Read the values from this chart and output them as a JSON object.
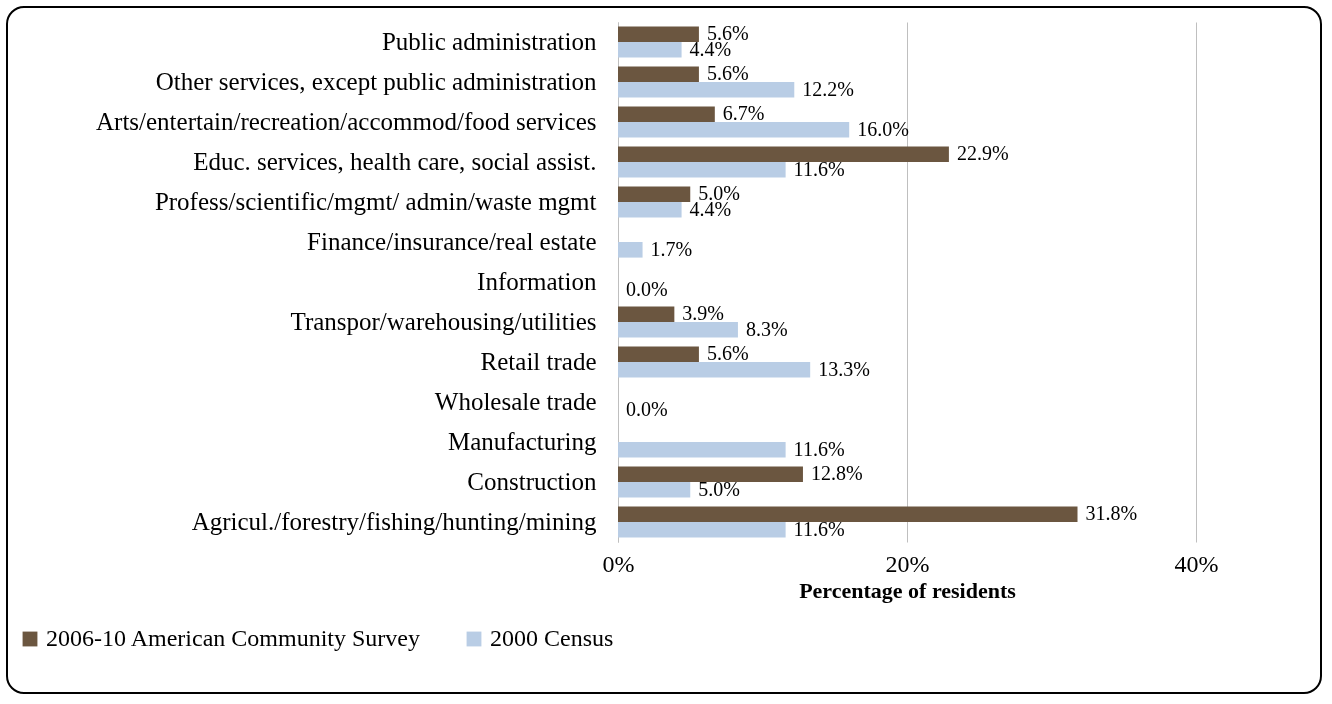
{
  "chart_data": {
    "type": "bar",
    "orientation": "horizontal",
    "categories": [
      "Public administration",
      "Other services, except public administration",
      "Arts/entertain/recreation/accommod/food services",
      "Educ. services, health care, social assist.",
      "Profess/scientific/mgmt/ admin/waste mgmt",
      "Finance/insurance/real estate",
      "Information",
      "Transpor/warehousing/utilities",
      "Retail trade",
      "Wholesale trade",
      "Manufacturing",
      "Construction",
      "Agricul./forestry/fishing/hunting/mining"
    ],
    "series": [
      {
        "name": "2006-10 American Community Survey",
        "color": "#6b5640",
        "values": [
          5.6,
          5.6,
          6.7,
          22.9,
          5.0,
          0,
          0,
          3.9,
          5.6,
          0,
          0,
          12.8,
          31.8
        ],
        "value_labels": [
          "5.6%",
          "5.6%",
          "6.7%",
          "22.9%",
          "5.0%",
          null,
          null,
          "3.9%",
          "5.6%",
          null,
          null,
          "12.8%",
          "31.8%"
        ]
      },
      {
        "name": "2000 Census",
        "color": "#b9cde5",
        "values": [
          4.4,
          12.2,
          16.0,
          11.6,
          4.4,
          1.7,
          0.0,
          8.3,
          13.3,
          0.0,
          11.6,
          5.0,
          11.6
        ],
        "value_labels": [
          "4.4%",
          "12.2%",
          "16.0%",
          "11.6%",
          "4.4%",
          "1.7%",
          "0.0%",
          "8.3%",
          "13.3%",
          "0.0%",
          "11.6%",
          "5.0%",
          "11.6%"
        ]
      }
    ],
    "xlabel": "Percentage of residents",
    "xlim": [
      0,
      40
    ],
    "xticks": [
      {
        "value": 0,
        "label": "0%"
      },
      {
        "value": 20,
        "label": "20%"
      },
      {
        "value": 40,
        "label": "40%"
      }
    ],
    "grid": "x",
    "legend": "bottom left"
  }
}
